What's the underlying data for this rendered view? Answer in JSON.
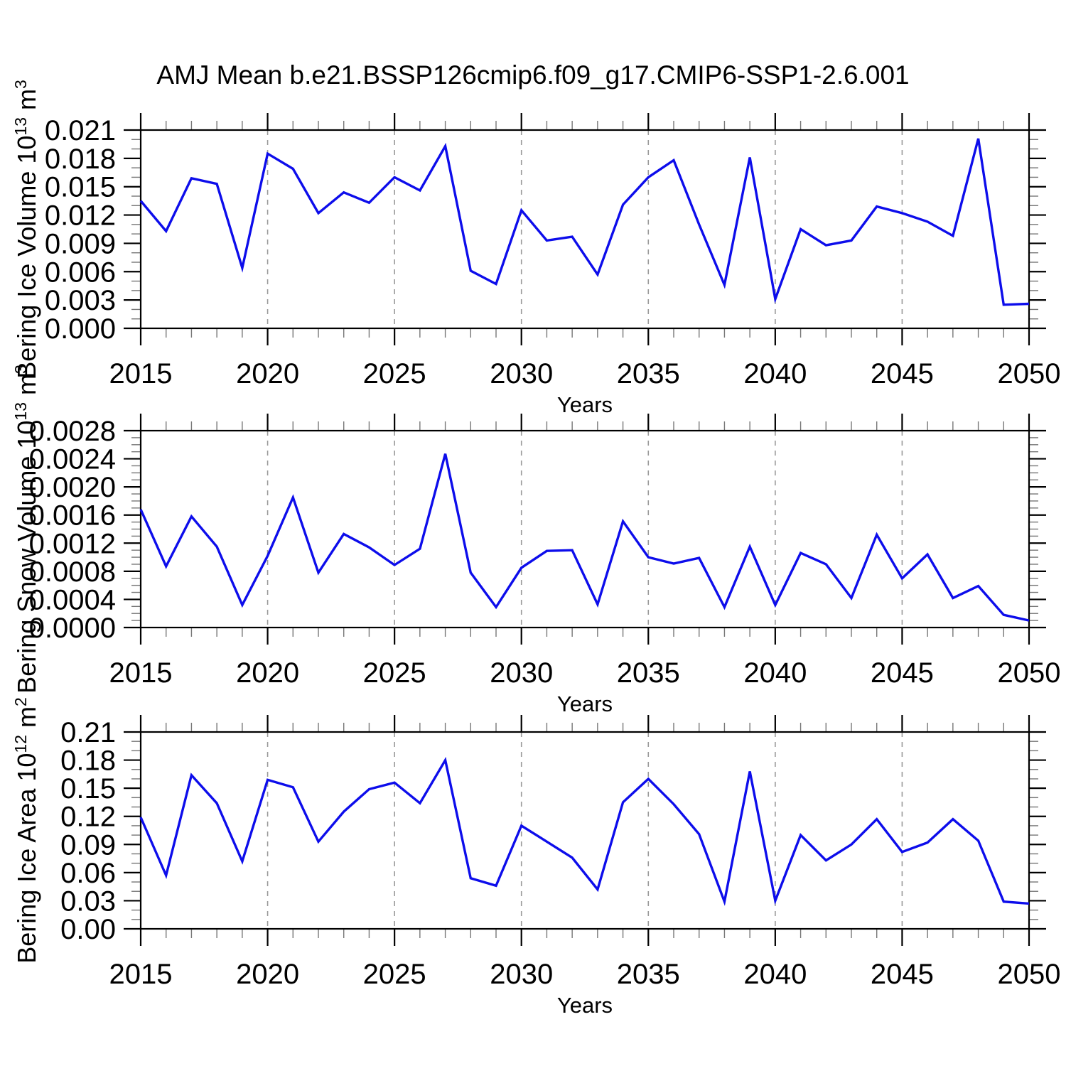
{
  "title": "AMJ Mean b.e21.BSSP126cmip6.f09_g17.CMIP6-SSP1-2.6.001",
  "line_color": "#0d0deb",
  "chart_data": [
    {
      "type": "line",
      "title": "Bering Ice Volume",
      "ylabel_text": "Bering Ice Volume 10^13 m^3",
      "ylabel_segments": [
        {
          "t": "Bering Ice Volume 10"
        },
        {
          "sup": "13"
        },
        {
          "t": " m"
        },
        {
          "sup": "3"
        }
      ],
      "xlabel": "Years",
      "x_tick_labels": [
        "2015",
        "2020",
        "2025",
        "2030",
        "2035",
        "2040",
        "2045",
        "2050"
      ],
      "y_tick_labels": [
        "0.000",
        "0.003",
        "0.006",
        "0.009",
        "0.012",
        "0.015",
        "0.018",
        "0.021"
      ],
      "ylim": [
        0,
        0.021
      ],
      "y_major": 0.003,
      "y_minor": 0.001,
      "xlim": [
        2015,
        2050
      ],
      "x_major": 5,
      "x_minor": 1,
      "grid_years": [
        2020,
        2025,
        2030,
        2035,
        2040,
        2045
      ],
      "grid": true,
      "legend_position": "none",
      "years": [
        2015,
        2016,
        2017,
        2018,
        2019,
        2020,
        2021,
        2022,
        2023,
        2024,
        2025,
        2026,
        2027,
        2028,
        2029,
        2030,
        2031,
        2032,
        2033,
        2034,
        2035,
        2036,
        2037,
        2038,
        2039,
        2040,
        2041,
        2042,
        2043,
        2044,
        2045,
        2046,
        2047,
        2048,
        2049,
        2050
      ],
      "values": [
        0.0135,
        0.0103,
        0.0159,
        0.0153,
        0.0064,
        0.0185,
        0.0169,
        0.0122,
        0.0144,
        0.0133,
        0.016,
        0.0146,
        0.0193,
        0.0061,
        0.0047,
        0.0125,
        0.0093,
        0.0097,
        0.0057,
        0.0131,
        0.016,
        0.0178,
        0.011,
        0.0046,
        0.0181,
        0.0031,
        0.0105,
        0.0088,
        0.0093,
        0.0129,
        0.0122,
        0.0113,
        0.0098,
        0.0201,
        0.0025,
        0.0026
      ]
    },
    {
      "type": "line",
      "title": "Bering Snow Volume",
      "ylabel_text": "Bering Snow Volume 10^13 m^3",
      "ylabel_segments": [
        {
          "t": "Bering Snow Volume 10"
        },
        {
          "sup": "13"
        },
        {
          "t": " m"
        },
        {
          "sup": "3"
        }
      ],
      "xlabel": "Years",
      "x_tick_labels": [
        "2015",
        "2020",
        "2025",
        "2030",
        "2035",
        "2040",
        "2045",
        "2050"
      ],
      "y_tick_labels": [
        "0.0000",
        "0.0004",
        "0.0008",
        "0.0012",
        "0.0016",
        "0.0020",
        "0.0024",
        "0.0028"
      ],
      "ylim": [
        0,
        0.0028
      ],
      "y_major": 0.0004,
      "y_minor": 0.0001,
      "xlim": [
        2015,
        2050
      ],
      "x_major": 5,
      "x_minor": 1,
      "grid_years": [
        2020,
        2025,
        2030,
        2035,
        2040,
        2045
      ],
      "grid": true,
      "legend_position": "none",
      "years": [
        2015,
        2016,
        2017,
        2018,
        2019,
        2020,
        2021,
        2022,
        2023,
        2024,
        2025,
        2026,
        2027,
        2028,
        2029,
        2030,
        2031,
        2032,
        2033,
        2034,
        2035,
        2036,
        2037,
        2038,
        2039,
        2040,
        2041,
        2042,
        2043,
        2044,
        2045,
        2046,
        2047,
        2048,
        2049,
        2050
      ],
      "values": [
        0.00168,
        0.00087,
        0.00158,
        0.00115,
        0.00032,
        0.00102,
        0.00185,
        0.00078,
        0.00133,
        0.00114,
        0.00089,
        0.00112,
        0.00247,
        0.00078,
        0.00029,
        0.00085,
        0.00109,
        0.0011,
        0.00033,
        0.00151,
        0.001,
        0.00091,
        0.00099,
        0.00029,
        0.00115,
        0.00032,
        0.00106,
        0.0009,
        0.00042,
        0.00132,
        0.0007,
        0.00104,
        0.00042,
        0.00059,
        0.00018,
        0.0001
      ]
    },
    {
      "type": "line",
      "title": "Bering Ice Area",
      "ylabel_text": "Bering Ice Area 10^12 m^2",
      "ylabel_segments": [
        {
          "t": "Bering Ice Area 10"
        },
        {
          "sup": "12"
        },
        {
          "t": " m"
        },
        {
          "sup": "2"
        }
      ],
      "xlabel": "Years",
      "x_tick_labels": [
        "2015",
        "2020",
        "2025",
        "2030",
        "2035",
        "2040",
        "2045",
        "2050"
      ],
      "y_tick_labels": [
        "0.00",
        "0.03",
        "0.06",
        "0.09",
        "0.12",
        "0.15",
        "0.18",
        "0.21"
      ],
      "ylim": [
        0,
        0.21
      ],
      "y_major": 0.03,
      "y_minor": 0.01,
      "xlim": [
        2015,
        2050
      ],
      "x_major": 5,
      "x_minor": 1,
      "grid_years": [
        2020,
        2025,
        2030,
        2035,
        2040,
        2045
      ],
      "grid": true,
      "legend_position": "none",
      "years": [
        2015,
        2016,
        2017,
        2018,
        2019,
        2020,
        2021,
        2022,
        2023,
        2024,
        2025,
        2026,
        2027,
        2028,
        2029,
        2030,
        2031,
        2032,
        2033,
        2034,
        2035,
        2036,
        2037,
        2038,
        2039,
        2040,
        2041,
        2042,
        2043,
        2044,
        2045,
        2046,
        2047,
        2048,
        2049,
        2050
      ],
      "values": [
        0.119,
        0.057,
        0.164,
        0.134,
        0.072,
        0.159,
        0.151,
        0.093,
        0.125,
        0.149,
        0.156,
        0.134,
        0.18,
        0.054,
        0.046,
        0.11,
        0.093,
        0.076,
        0.042,
        0.135,
        0.16,
        0.133,
        0.101,
        0.029,
        0.168,
        0.03,
        0.1,
        0.073,
        0.09,
        0.117,
        0.082,
        0.092,
        0.117,
        0.094,
        0.029,
        0.027
      ]
    }
  ]
}
